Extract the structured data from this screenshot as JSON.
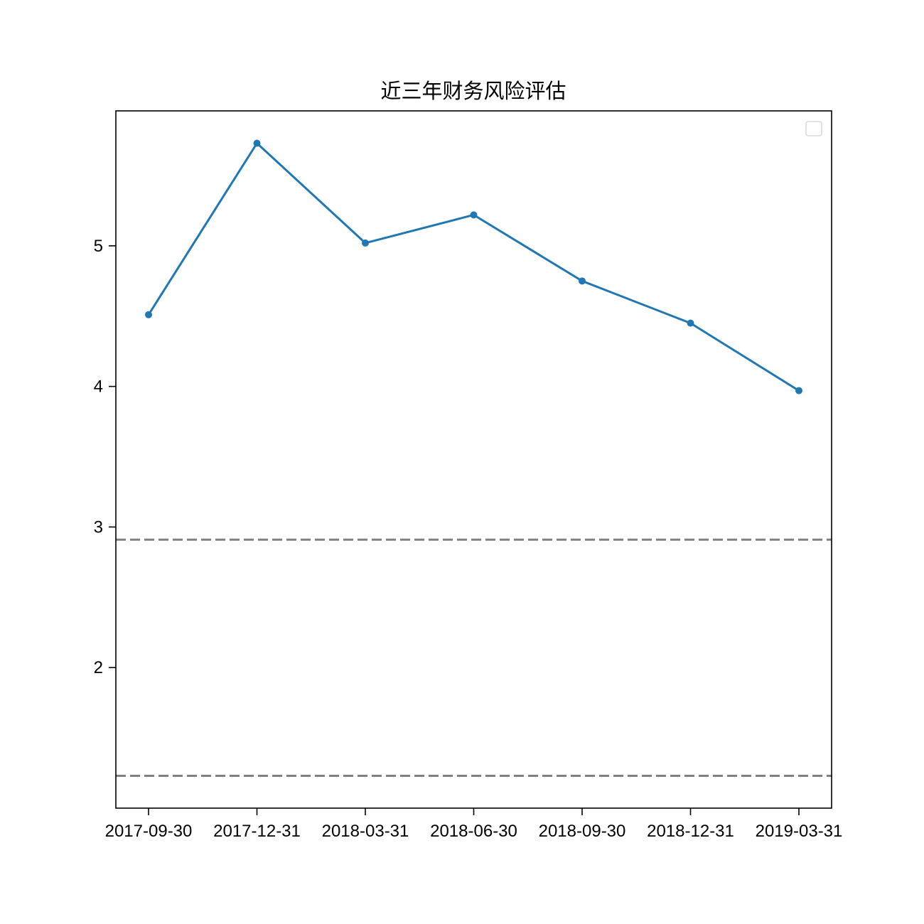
{
  "chart_data": {
    "type": "line",
    "title": "近三年财务风险评估",
    "xlabel": "",
    "ylabel": "",
    "categories": [
      "2017-09-30",
      "2017-12-31",
      "2018-03-31",
      "2018-06-30",
      "2018-09-30",
      "2018-12-31",
      "2019-03-31"
    ],
    "series": [
      {
        "values": [
          4.51,
          5.73,
          5.02,
          5.22,
          4.75,
          4.45,
          3.97
        ],
        "color": "#1f77b4",
        "marker": "circle"
      }
    ],
    "reference_lines": [
      {
        "y": 2.91,
        "style": "dashed",
        "color": "#808080"
      },
      {
        "y": 1.23,
        "style": "dashed",
        "color": "#808080"
      }
    ],
    "y_ticks": [
      2,
      3,
      4,
      5
    ],
    "ylim": [
      1.0,
      5.96
    ],
    "grid": false,
    "legend": {
      "position": "top-right",
      "entries": []
    }
  }
}
